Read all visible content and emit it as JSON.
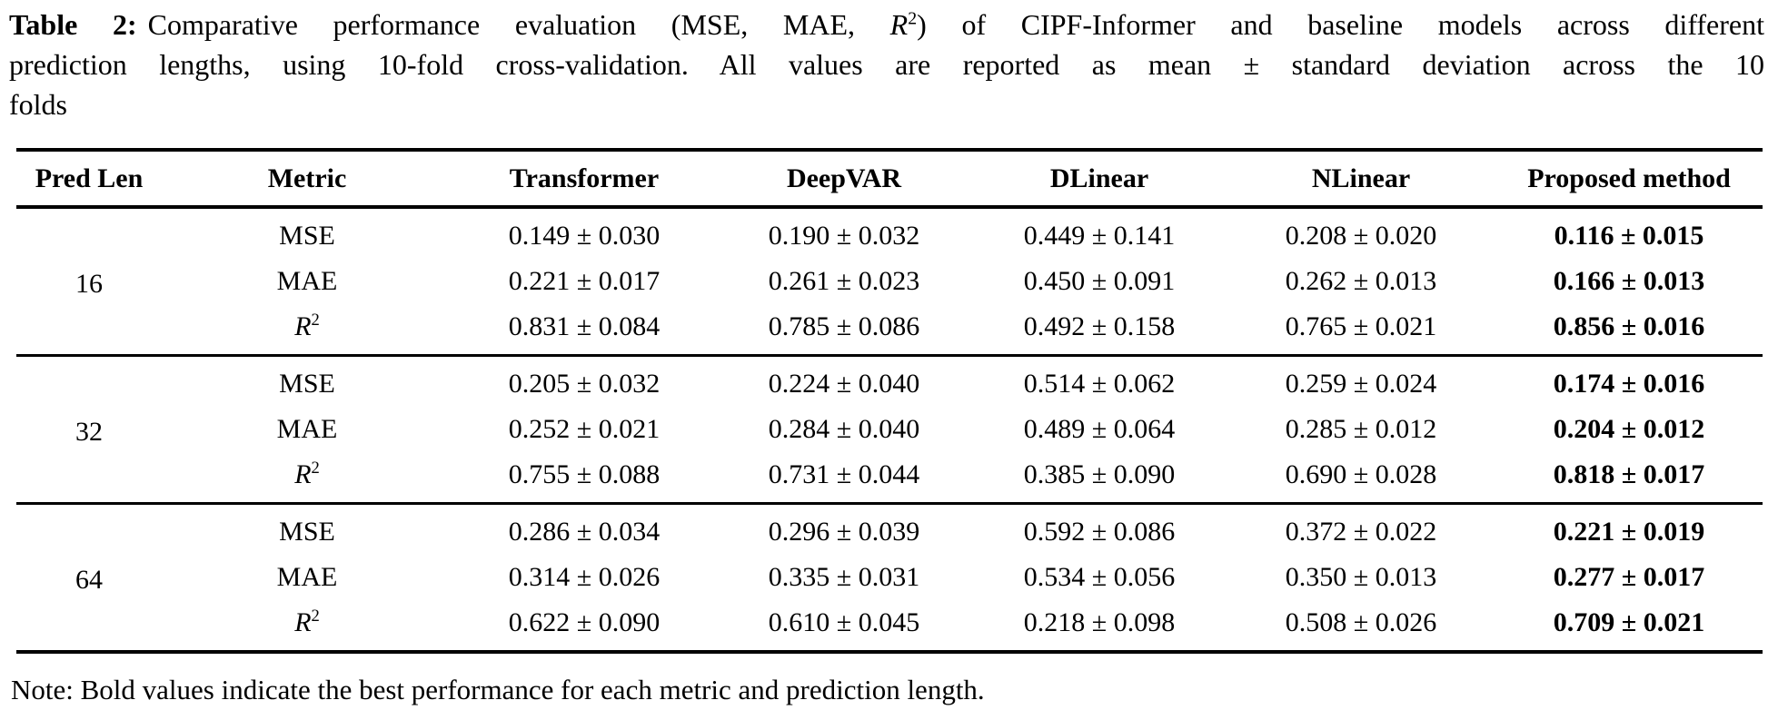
{
  "caption": {
    "label": "Table 2:",
    "line1_pre": "Comparative performance evaluation (MSE, MAE, ",
    "r": "R",
    "r_sup": "2",
    "line1_post": ") of CIPF-Informer and baseline models across different",
    "line2": "prediction lengths, using 10-fold cross-validation. All values are reported as mean ± standard deviation across the 10",
    "line3": "folds"
  },
  "table": {
    "headers": [
      "Pred Len",
      "Metric",
      "Transformer",
      "DeepVAR",
      "DLinear",
      "NLinear",
      "Proposed method"
    ],
    "groups": [
      {
        "pred_len": "16",
        "rows": [
          {
            "metric": "MSE",
            "sup": "",
            "values": [
              "0.149 ± 0.030",
              "0.190 ± 0.032",
              "0.449 ± 0.141",
              "0.208 ± 0.020",
              "0.116 ± 0.015"
            ]
          },
          {
            "metric": "MAE",
            "sup": "",
            "values": [
              "0.221 ± 0.017",
              "0.261 ± 0.023",
              "0.450 ± 0.091",
              "0.262 ± 0.013",
              "0.166 ± 0.013"
            ]
          },
          {
            "metric": "R",
            "sup": "2",
            "values": [
              "0.831 ± 0.084",
              "0.785 ± 0.086",
              "0.492 ± 0.158",
              "0.765 ± 0.021",
              "0.856 ± 0.016"
            ]
          }
        ]
      },
      {
        "pred_len": "32",
        "rows": [
          {
            "metric": "MSE",
            "sup": "",
            "values": [
              "0.205 ± 0.032",
              "0.224 ± 0.040",
              "0.514 ± 0.062",
              "0.259 ± 0.024",
              "0.174 ± 0.016"
            ]
          },
          {
            "metric": "MAE",
            "sup": "",
            "values": [
              "0.252 ± 0.021",
              "0.284 ± 0.040",
              "0.489 ± 0.064",
              "0.285 ± 0.012",
              "0.204 ± 0.012"
            ]
          },
          {
            "metric": "R",
            "sup": "2",
            "values": [
              "0.755 ± 0.088",
              "0.731 ± 0.044",
              "0.385 ± 0.090",
              "0.690 ± 0.028",
              "0.818 ± 0.017"
            ]
          }
        ]
      },
      {
        "pred_len": "64",
        "rows": [
          {
            "metric": "MSE",
            "sup": "",
            "values": [
              "0.286 ± 0.034",
              "0.296 ± 0.039",
              "0.592 ± 0.086",
              "0.372 ± 0.022",
              "0.221 ± 0.019"
            ]
          },
          {
            "metric": "MAE",
            "sup": "",
            "values": [
              "0.314 ± 0.026",
              "0.335 ± 0.031",
              "0.534 ± 0.056",
              "0.350 ± 0.013",
              "0.277 ± 0.017"
            ]
          },
          {
            "metric": "R",
            "sup": "2",
            "values": [
              "0.622 ± 0.090",
              "0.610 ± 0.045",
              "0.218 ± 0.098",
              "0.508 ± 0.026",
              "0.709 ± 0.021"
            ]
          }
        ]
      }
    ]
  },
  "note": "Note: Bold values indicate the best performance for each metric and prediction length."
}
